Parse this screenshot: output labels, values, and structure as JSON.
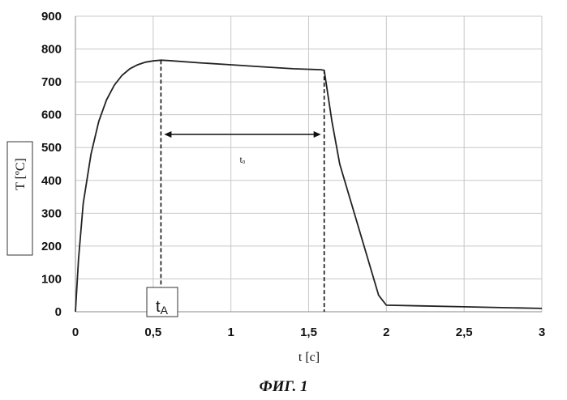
{
  "chart_data": {
    "type": "line",
    "title": "",
    "xlabel": "t [c]",
    "ylabel": "T [ºC]",
    "xlim": [
      0,
      3
    ],
    "ylim": [
      0,
      900
    ],
    "x_ticks": [
      0,
      0.5,
      1,
      1.5,
      2,
      2.5,
      3
    ],
    "x_tick_labels": [
      "0",
      "0,5",
      "1",
      "1,5",
      "2",
      "2,5",
      "3"
    ],
    "y_ticks": [
      0,
      100,
      200,
      300,
      400,
      500,
      600,
      700,
      800,
      900
    ],
    "y_tick_labels": [
      "0",
      "100",
      "200",
      "300",
      "400",
      "500",
      "600",
      "700",
      "800",
      "900"
    ],
    "grid": true,
    "series": [
      {
        "x": [
          0,
          0.02,
          0.05,
          0.1,
          0.15,
          0.2,
          0.25,
          0.3,
          0.35,
          0.4,
          0.45,
          0.5,
          0.55,
          0.6,
          0.8,
          1.0,
          1.2,
          1.4,
          1.58,
          1.6,
          1.65,
          1.7,
          1.8,
          1.9,
          1.95,
          2.0,
          2.2,
          2.5,
          2.8,
          3.0
        ],
        "y": [
          0,
          160,
          330,
          480,
          580,
          645,
          690,
          720,
          740,
          752,
          760,
          764,
          766,
          765,
          758,
          752,
          746,
          740,
          737,
          735,
          580,
          450,
          290,
          130,
          50,
          20,
          18,
          15,
          12,
          10
        ]
      }
    ],
    "annotations": {
      "tA_label": "t",
      "tA_sub": "A",
      "tA_x": 0.55,
      "tB_x": 1.6,
      "interval_label": "t₀",
      "interval_y": 540
    }
  },
  "caption": "ФИГ. 1"
}
